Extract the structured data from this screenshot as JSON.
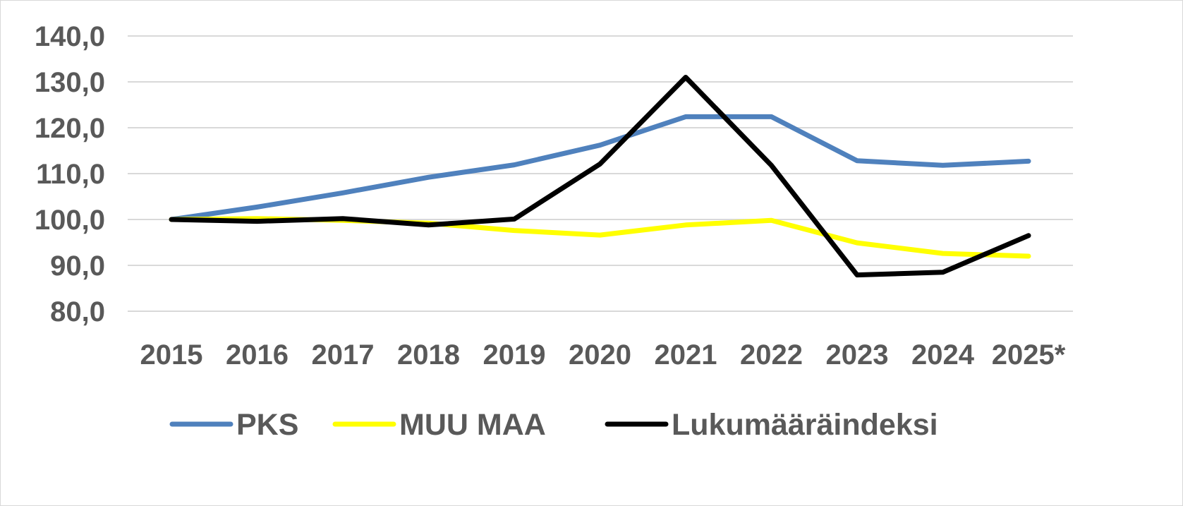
{
  "chart_data": {
    "type": "line",
    "title": "",
    "xlabel": "",
    "ylabel": "",
    "categories": [
      "2015",
      "2016",
      "2017",
      "2018",
      "2019",
      "2020",
      "2021",
      "2022",
      "2023",
      "2024",
      "2025*"
    ],
    "ylim": [
      80,
      140
    ],
    "yticks": [
      140,
      130,
      120,
      110,
      100,
      90,
      80
    ],
    "ytick_labels": [
      "140,0",
      "130,0",
      "120,0",
      "110,0",
      "100,0",
      "90,0",
      "80,0"
    ],
    "grid": true,
    "legend_position": "bottom",
    "series": [
      {
        "name": "PKS",
        "color": "#4f81bd",
        "values": [
          100.0,
          102.7,
          105.8,
          109.2,
          111.9,
          116.2,
          122.4,
          122.4,
          112.8,
          111.8,
          112.7
        ]
      },
      {
        "name": "MUU MAA",
        "color": "#ffff00",
        "values": [
          100.0,
          100.2,
          99.8,
          99.2,
          97.6,
          96.6,
          98.8,
          99.8,
          94.9,
          92.6,
          92.0
        ]
      },
      {
        "name": "Lukumääräindeksi",
        "color": "#000000",
        "values": [
          100.0,
          99.6,
          100.2,
          98.8,
          100.1,
          112.1,
          131.0,
          111.8,
          87.9,
          88.5,
          96.5
        ]
      }
    ]
  }
}
